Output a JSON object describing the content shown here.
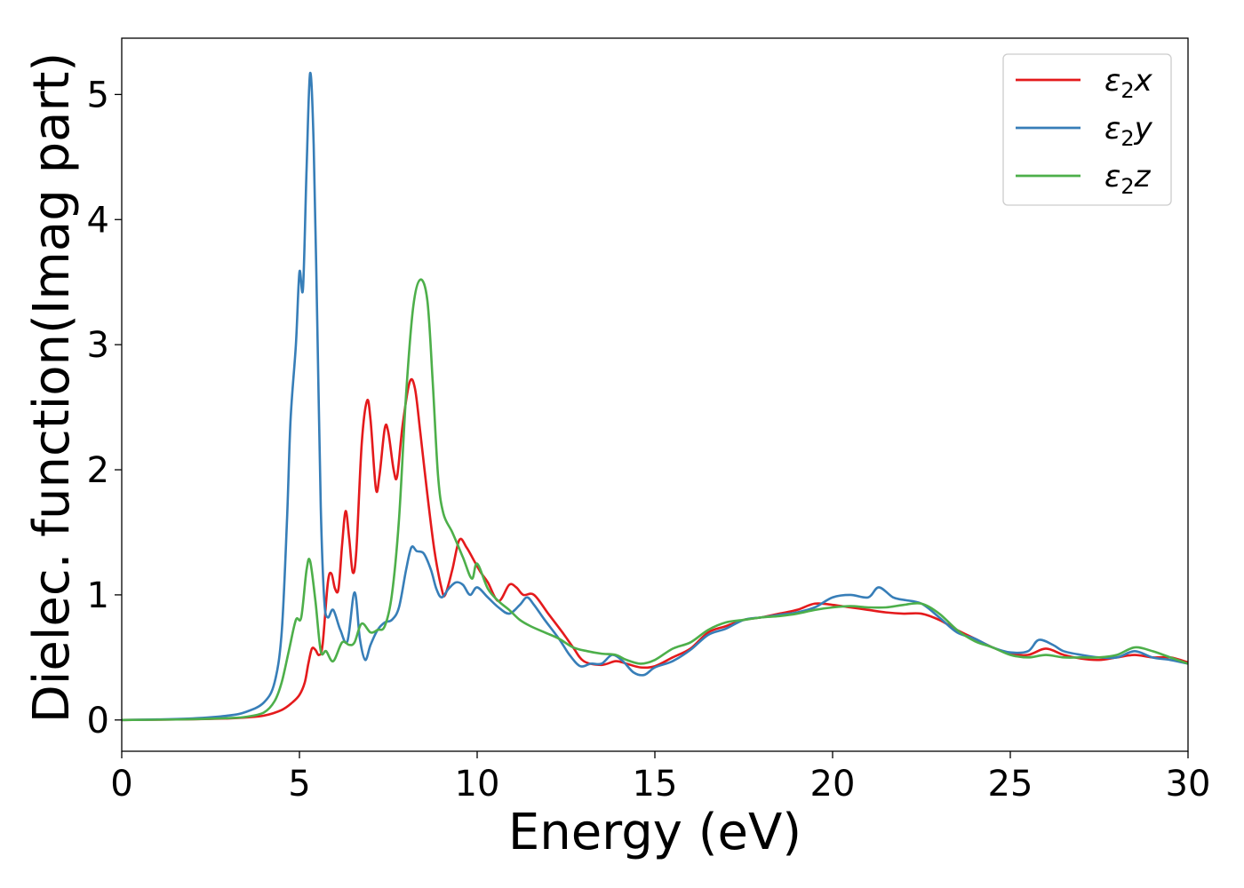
{
  "chart_data": {
    "type": "line",
    "title": "",
    "xlabel": "Energy (eV)",
    "ylabel": "Dielec. function(Imag part)",
    "xlim": [
      0,
      30
    ],
    "ylim": [
      -0.25,
      5.45
    ],
    "xticks": [
      0,
      5,
      10,
      15,
      20,
      25,
      30
    ],
    "yticks": [
      0,
      1,
      2,
      3,
      4,
      5
    ],
    "grid": false,
    "legend_position": "top-right",
    "series": [
      {
        "name": "ε₂x",
        "legend_base": "ε",
        "legend_sub": "2",
        "legend_suffix": "x",
        "color": "#e41a1c",
        "points": [
          [
            0,
            0
          ],
          [
            1,
            0.002
          ],
          [
            2,
            0.006
          ],
          [
            3,
            0.012
          ],
          [
            3.5,
            0.02
          ],
          [
            4,
            0.035
          ],
          [
            4.5,
            0.08
          ],
          [
            4.8,
            0.14
          ],
          [
            5,
            0.2
          ],
          [
            5.15,
            0.3
          ],
          [
            5.25,
            0.45
          ],
          [
            5.35,
            0.57
          ],
          [
            5.45,
            0.56
          ],
          [
            5.55,
            0.52
          ],
          [
            5.65,
            0.6
          ],
          [
            5.8,
            1.1
          ],
          [
            5.9,
            1.17
          ],
          [
            6.0,
            1.05
          ],
          [
            6.1,
            1.05
          ],
          [
            6.2,
            1.4
          ],
          [
            6.3,
            1.67
          ],
          [
            6.4,
            1.45
          ],
          [
            6.5,
            1.18
          ],
          [
            6.6,
            1.35
          ],
          [
            6.75,
            2.2
          ],
          [
            6.9,
            2.55
          ],
          [
            7.0,
            2.4
          ],
          [
            7.15,
            1.85
          ],
          [
            7.25,
            1.95
          ],
          [
            7.4,
            2.33
          ],
          [
            7.5,
            2.3
          ],
          [
            7.65,
            2.0
          ],
          [
            7.75,
            1.95
          ],
          [
            7.9,
            2.35
          ],
          [
            8.1,
            2.7
          ],
          [
            8.25,
            2.65
          ],
          [
            8.4,
            2.3
          ],
          [
            8.6,
            1.8
          ],
          [
            8.8,
            1.35
          ],
          [
            9.0,
            1.05
          ],
          [
            9.1,
            1.0
          ],
          [
            9.3,
            1.2
          ],
          [
            9.5,
            1.44
          ],
          [
            9.7,
            1.38
          ],
          [
            9.9,
            1.28
          ],
          [
            10.1,
            1.18
          ],
          [
            10.3,
            1.1
          ],
          [
            10.6,
            0.95
          ],
          [
            10.9,
            1.08
          ],
          [
            11.1,
            1.06
          ],
          [
            11.3,
            1.0
          ],
          [
            11.6,
            1.0
          ],
          [
            12.0,
            0.85
          ],
          [
            12.4,
            0.7
          ],
          [
            12.7,
            0.58
          ],
          [
            13.0,
            0.47
          ],
          [
            13.5,
            0.44
          ],
          [
            13.9,
            0.47
          ],
          [
            14.2,
            0.45
          ],
          [
            14.6,
            0.42
          ],
          [
            15.0,
            0.43
          ],
          [
            15.5,
            0.5
          ],
          [
            16.0,
            0.57
          ],
          [
            16.5,
            0.7
          ],
          [
            17.0,
            0.75
          ],
          [
            17.5,
            0.8
          ],
          [
            18.0,
            0.82
          ],
          [
            18.5,
            0.85
          ],
          [
            19.0,
            0.88
          ],
          [
            19.5,
            0.93
          ],
          [
            20.0,
            0.92
          ],
          [
            20.5,
            0.9
          ],
          [
            21.0,
            0.88
          ],
          [
            21.5,
            0.86
          ],
          [
            22.0,
            0.85
          ],
          [
            22.5,
            0.85
          ],
          [
            23.0,
            0.8
          ],
          [
            23.5,
            0.72
          ],
          [
            24.0,
            0.65
          ],
          [
            24.5,
            0.58
          ],
          [
            25.0,
            0.53
          ],
          [
            25.5,
            0.52
          ],
          [
            26.0,
            0.57
          ],
          [
            26.5,
            0.52
          ],
          [
            27.0,
            0.49
          ],
          [
            27.5,
            0.48
          ],
          [
            28.0,
            0.5
          ],
          [
            28.5,
            0.52
          ],
          [
            29.0,
            0.5
          ],
          [
            29.5,
            0.5
          ],
          [
            30.0,
            0.46
          ]
        ]
      },
      {
        "name": "ε₂y",
        "legend_base": "ε",
        "legend_sub": "2",
        "legend_suffix": "y",
        "color": "#377eb8",
        "points": [
          [
            0,
            0
          ],
          [
            1,
            0.004
          ],
          [
            2,
            0.012
          ],
          [
            3,
            0.035
          ],
          [
            3.5,
            0.065
          ],
          [
            4,
            0.14
          ],
          [
            4.3,
            0.3
          ],
          [
            4.5,
            0.7
          ],
          [
            4.65,
            1.6
          ],
          [
            4.75,
            2.4
          ],
          [
            4.9,
            3.0
          ],
          [
            5.0,
            3.58
          ],
          [
            5.1,
            3.45
          ],
          [
            5.2,
            4.4
          ],
          [
            5.3,
            5.17
          ],
          [
            5.4,
            4.6
          ],
          [
            5.5,
            3.2
          ],
          [
            5.6,
            1.7
          ],
          [
            5.7,
            0.95
          ],
          [
            5.8,
            0.82
          ],
          [
            5.95,
            0.88
          ],
          [
            6.15,
            0.72
          ],
          [
            6.35,
            0.63
          ],
          [
            6.55,
            1.02
          ],
          [
            6.7,
            0.65
          ],
          [
            6.85,
            0.48
          ],
          [
            7.0,
            0.6
          ],
          [
            7.2,
            0.72
          ],
          [
            7.4,
            0.78
          ],
          [
            7.6,
            0.8
          ],
          [
            7.8,
            0.9
          ],
          [
            8.0,
            1.2
          ],
          [
            8.15,
            1.38
          ],
          [
            8.3,
            1.35
          ],
          [
            8.5,
            1.33
          ],
          [
            8.7,
            1.2
          ],
          [
            8.85,
            1.05
          ],
          [
            9.0,
            0.98
          ],
          [
            9.2,
            1.05
          ],
          [
            9.4,
            1.1
          ],
          [
            9.6,
            1.08
          ],
          [
            9.8,
            1.0
          ],
          [
            10.0,
            1.06
          ],
          [
            10.3,
            0.98
          ],
          [
            10.6,
            0.9
          ],
          [
            10.9,
            0.85
          ],
          [
            11.2,
            0.92
          ],
          [
            11.4,
            0.98
          ],
          [
            11.6,
            0.92
          ],
          [
            11.9,
            0.8
          ],
          [
            12.3,
            0.65
          ],
          [
            12.6,
            0.52
          ],
          [
            12.9,
            0.43
          ],
          [
            13.2,
            0.45
          ],
          [
            13.5,
            0.45
          ],
          [
            13.8,
            0.52
          ],
          [
            14.1,
            0.47
          ],
          [
            14.4,
            0.38
          ],
          [
            14.7,
            0.36
          ],
          [
            15.0,
            0.42
          ],
          [
            15.5,
            0.47
          ],
          [
            16.0,
            0.56
          ],
          [
            16.5,
            0.68
          ],
          [
            17.0,
            0.73
          ],
          [
            17.5,
            0.8
          ],
          [
            18.0,
            0.82
          ],
          [
            18.5,
            0.84
          ],
          [
            19.0,
            0.86
          ],
          [
            19.5,
            0.9
          ],
          [
            20.0,
            0.98
          ],
          [
            20.5,
            1.0
          ],
          [
            21.0,
            0.98
          ],
          [
            21.3,
            1.06
          ],
          [
            21.7,
            0.98
          ],
          [
            22.0,
            0.96
          ],
          [
            22.5,
            0.93
          ],
          [
            23.0,
            0.82
          ],
          [
            23.5,
            0.7
          ],
          [
            24.0,
            0.65
          ],
          [
            24.5,
            0.58
          ],
          [
            25.0,
            0.54
          ],
          [
            25.5,
            0.55
          ],
          [
            25.8,
            0.64
          ],
          [
            26.2,
            0.6
          ],
          [
            26.5,
            0.55
          ],
          [
            27.0,
            0.52
          ],
          [
            27.5,
            0.5
          ],
          [
            28.0,
            0.5
          ],
          [
            28.5,
            0.55
          ],
          [
            29.0,
            0.5
          ],
          [
            29.5,
            0.48
          ],
          [
            30.0,
            0.45
          ]
        ]
      },
      {
        "name": "ε₂z",
        "legend_base": "ε",
        "legend_sub": "2",
        "legend_suffix": "z",
        "color": "#4daf4a",
        "points": [
          [
            0,
            0
          ],
          [
            1,
            0.002
          ],
          [
            2,
            0.006
          ],
          [
            3,
            0.015
          ],
          [
            3.5,
            0.025
          ],
          [
            4,
            0.06
          ],
          [
            4.3,
            0.15
          ],
          [
            4.5,
            0.3
          ],
          [
            4.7,
            0.55
          ],
          [
            4.9,
            0.8
          ],
          [
            5.05,
            0.82
          ],
          [
            5.2,
            1.2
          ],
          [
            5.3,
            1.27
          ],
          [
            5.45,
            0.95
          ],
          [
            5.6,
            0.55
          ],
          [
            5.75,
            0.55
          ],
          [
            5.95,
            0.47
          ],
          [
            6.2,
            0.62
          ],
          [
            6.4,
            0.6
          ],
          [
            6.55,
            0.62
          ],
          [
            6.75,
            0.77
          ],
          [
            7.0,
            0.7
          ],
          [
            7.2,
            0.72
          ],
          [
            7.4,
            0.75
          ],
          [
            7.6,
            1.0
          ],
          [
            7.8,
            1.6
          ],
          [
            8.0,
            2.6
          ],
          [
            8.2,
            3.3
          ],
          [
            8.4,
            3.52
          ],
          [
            8.6,
            3.35
          ],
          [
            8.75,
            2.7
          ],
          [
            8.9,
            1.95
          ],
          [
            9.05,
            1.65
          ],
          [
            9.3,
            1.5
          ],
          [
            9.6,
            1.3
          ],
          [
            9.85,
            1.13
          ],
          [
            10.0,
            1.25
          ],
          [
            10.3,
            1.05
          ],
          [
            10.6,
            0.95
          ],
          [
            10.9,
            0.88
          ],
          [
            11.2,
            0.8
          ],
          [
            11.5,
            0.75
          ],
          [
            11.9,
            0.7
          ],
          [
            12.3,
            0.65
          ],
          [
            12.7,
            0.58
          ],
          [
            13.1,
            0.55
          ],
          [
            13.5,
            0.53
          ],
          [
            13.9,
            0.52
          ],
          [
            14.2,
            0.48
          ],
          [
            14.6,
            0.45
          ],
          [
            15.0,
            0.48
          ],
          [
            15.5,
            0.57
          ],
          [
            16.0,
            0.62
          ],
          [
            16.5,
            0.72
          ],
          [
            17.0,
            0.78
          ],
          [
            17.5,
            0.8
          ],
          [
            18.0,
            0.82
          ],
          [
            18.5,
            0.83
          ],
          [
            19.0,
            0.85
          ],
          [
            19.5,
            0.88
          ],
          [
            20.0,
            0.9
          ],
          [
            20.5,
            0.91
          ],
          [
            21.0,
            0.9
          ],
          [
            21.5,
            0.9
          ],
          [
            22.0,
            0.92
          ],
          [
            22.5,
            0.93
          ],
          [
            23.0,
            0.85
          ],
          [
            23.5,
            0.72
          ],
          [
            24.0,
            0.63
          ],
          [
            24.5,
            0.58
          ],
          [
            25.0,
            0.52
          ],
          [
            25.5,
            0.5
          ],
          [
            26.0,
            0.52
          ],
          [
            26.5,
            0.5
          ],
          [
            27.0,
            0.5
          ],
          [
            27.5,
            0.5
          ],
          [
            28.0,
            0.52
          ],
          [
            28.5,
            0.58
          ],
          [
            29.0,
            0.55
          ],
          [
            29.5,
            0.5
          ],
          [
            30.0,
            0.45
          ]
        ]
      }
    ]
  }
}
